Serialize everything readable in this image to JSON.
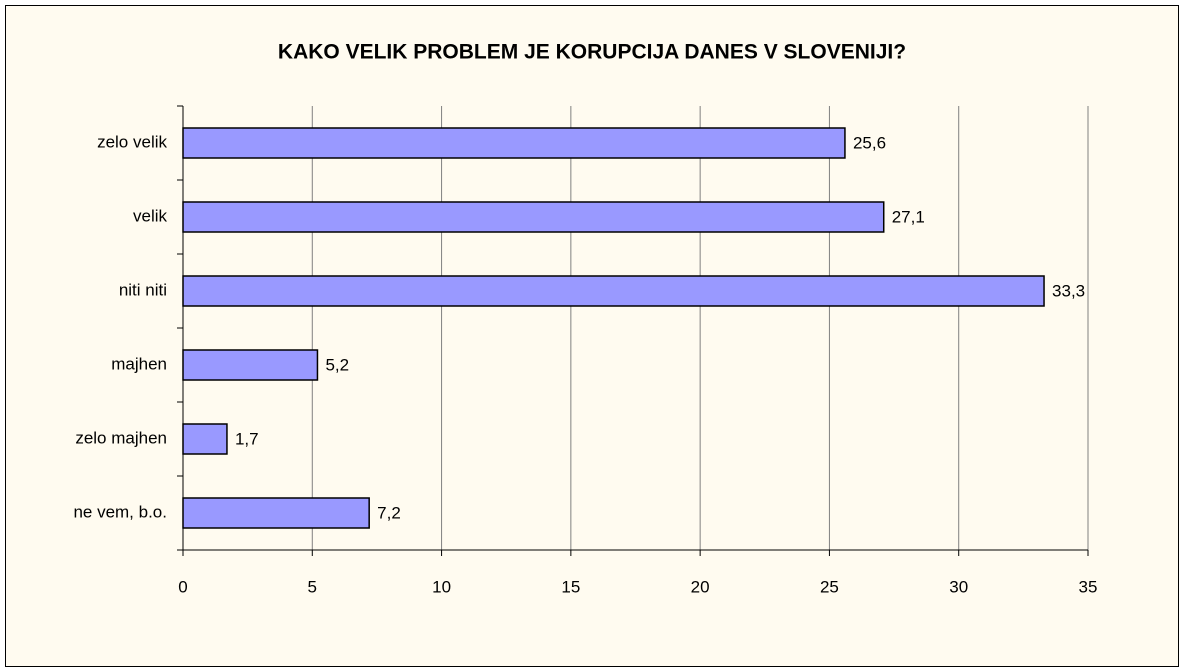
{
  "chart_data": {
    "type": "bar",
    "orientation": "horizontal",
    "title": "KAKO VELIK PROBLEM JE KORUPCIJA DANES V SLOVENIJI?",
    "categories": [
      "zelo velik",
      "velik",
      "niti niti",
      "majhen",
      "zelo majhen",
      "ne vem, b.o."
    ],
    "values": [
      25.6,
      27.1,
      33.3,
      5.2,
      1.7,
      7.2
    ],
    "value_labels": [
      "25,6",
      "27,1",
      "33,3",
      "5,2",
      "1,7",
      "7,2"
    ],
    "color": "#9999ff",
    "xlim": [
      0,
      35
    ],
    "xticks": [
      0,
      5,
      10,
      15,
      20,
      25,
      30,
      35
    ],
    "grid": true
  }
}
